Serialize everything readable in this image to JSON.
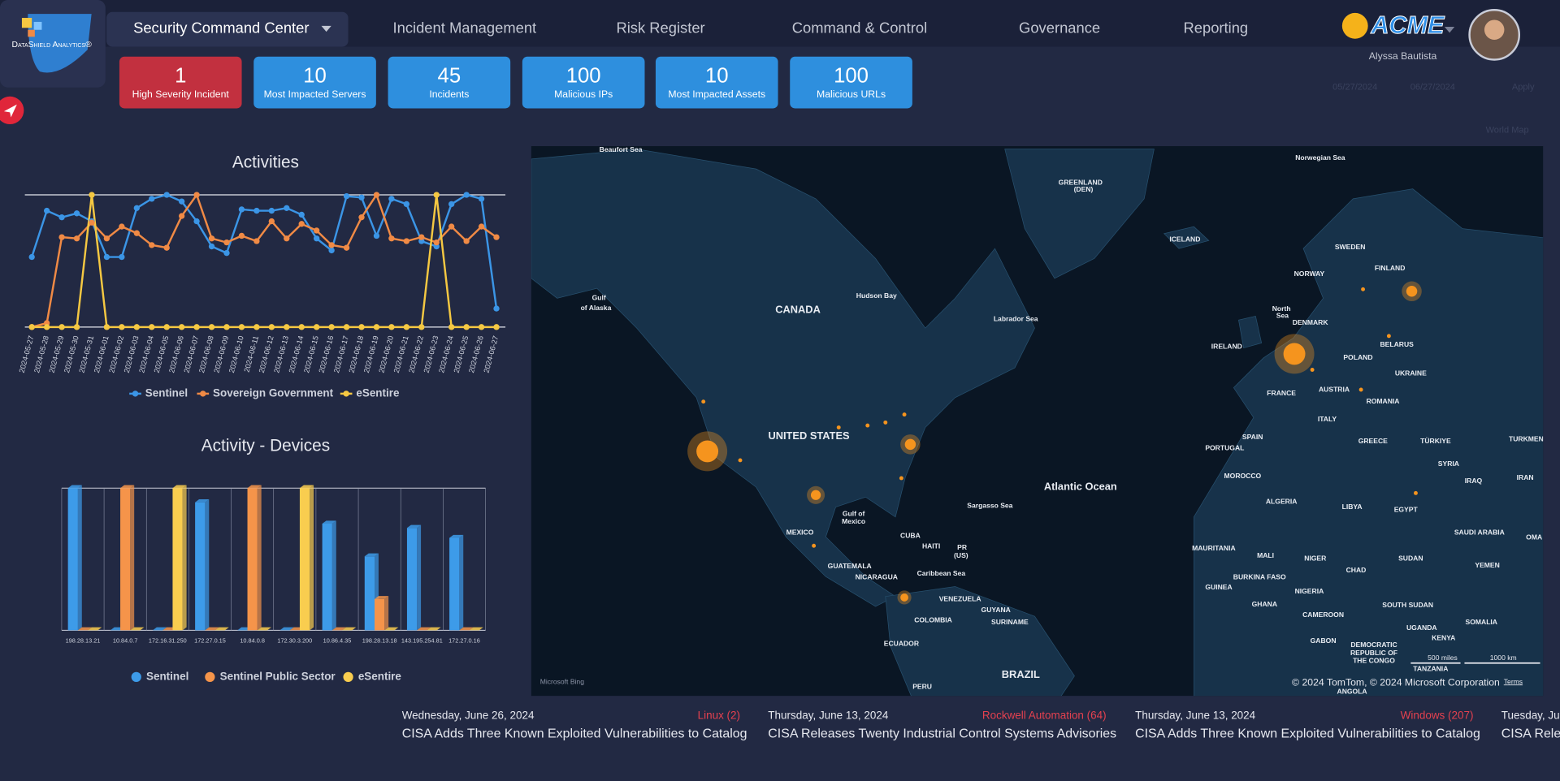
{
  "header": {
    "brand": "DataShield Analytics®",
    "tabs": [
      "Security Command Center",
      "Incident Management",
      "Risk Register",
      "Command & Control",
      "Governance",
      "Reporting"
    ],
    "company": "ACME",
    "user": "Alyssa Bautista"
  },
  "filters": {
    "start_date": "05/27/2024",
    "end_date": "06/27/2024",
    "apply": "Apply",
    "map_view": "World Map"
  },
  "kpis": [
    {
      "value": 1,
      "label": "High Severity Incident",
      "color": "#c2303f"
    },
    {
      "value": 10,
      "label": "Most Impacted Servers",
      "color": "#2e8fde"
    },
    {
      "value": 45,
      "label": "Incidents",
      "color": "#2e8fde"
    },
    {
      "value": 100,
      "label": "Malicious IPs",
      "color": "#2e8fde"
    },
    {
      "value": 10,
      "label": "Most Impacted Assets",
      "color": "#2e8fde"
    },
    {
      "value": 100,
      "label": "Malicious URLs",
      "color": "#2e8fde"
    }
  ],
  "chart_data": [
    {
      "type": "line",
      "title": "Activities",
      "legend": "bottom",
      "ylim": [
        0,
        100
      ],
      "categories": [
        "2024-05-27",
        "2024-05-28",
        "2024-05-29",
        "2024-05-30",
        "2024-05-31",
        "2024-06-01",
        "2024-06-02",
        "2024-06-03",
        "2024-06-04",
        "2024-06-05",
        "2024-06-06",
        "2024-06-07",
        "2024-06-08",
        "2024-06-09",
        "2024-06-10",
        "2024-06-11",
        "2024-06-12",
        "2024-06-13",
        "2024-06-14",
        "2024-06-15",
        "2024-06-16",
        "2024-06-17",
        "2024-06-18",
        "2024-06-19",
        "2024-06-20",
        "2024-06-21",
        "2024-06-22",
        "2024-06-23",
        "2024-06-24",
        "2024-06-25",
        "2024-06-26",
        "2024-06-27"
      ],
      "series": [
        {
          "name": "Sentinel",
          "color": "#3b95e6",
          "values": [
            53,
            88,
            83,
            86,
            80,
            53,
            53,
            90,
            97,
            100,
            95,
            80,
            61,
            56,
            89,
            88,
            88,
            90,
            85,
            67,
            58,
            99,
            98,
            69,
            97,
            93,
            65,
            61,
            93,
            100,
            97,
            14
          ]
        },
        {
          "name": "Sovereign Government",
          "color": "#f08a45",
          "values": [
            0,
            3,
            68,
            67,
            79,
            67,
            76,
            71,
            62,
            60,
            84,
            100,
            67,
            64,
            69,
            65,
            80,
            67,
            78,
            73,
            62,
            60,
            83,
            100,
            67,
            65,
            68,
            64,
            76,
            65,
            76,
            68
          ]
        },
        {
          "name": "eSentire",
          "color": "#f5c842",
          "values": [
            0,
            0,
            0,
            0,
            100,
            0,
            0,
            0,
            0,
            0,
            0,
            0,
            0,
            0,
            0,
            0,
            0,
            0,
            0,
            0,
            0,
            0,
            0,
            0,
            0,
            0,
            0,
            100,
            0,
            0,
            0,
            0
          ]
        }
      ]
    },
    {
      "type": "bar",
      "title": "Activity - Devices",
      "legend": "bottom",
      "ylim": [
        0,
        100
      ],
      "categories": [
        "198.28.13.21",
        "10.84.0.7",
        "172.16.31.250",
        "172.27.0.15",
        "10.84.0.8",
        "172.30.3.200",
        "10.86.4.35",
        "198.28.13.18",
        "143.195.254.81",
        "172.27.0.16"
      ],
      "series": [
        {
          "name": "Sentinel",
          "color": "#3d9be9",
          "values": [
            100,
            0,
            0,
            90,
            0,
            0,
            75,
            52,
            72,
            65
          ]
        },
        {
          "name": "Sentinel Public Sector",
          "color": "#f5944a",
          "values": [
            0,
            100,
            0,
            0,
            100,
            0,
            0,
            22,
            0,
            0
          ]
        },
        {
          "name": "eSentire",
          "color": "#f9cd4f",
          "values": [
            0,
            0,
            100,
            0,
            0,
            100,
            0,
            0,
            0,
            0
          ]
        }
      ]
    }
  ],
  "map": {
    "labels": [
      "Beaufort Sea",
      "Norwegian Sea",
      "GREENLAND",
      "(DEN)",
      "ICELAND",
      "SWEDEN",
      "FINLAND",
      "NORWAY",
      "Gulf",
      "of Alaska",
      "Hudson Bay",
      "CANADA",
      "Labrador Sea",
      "North",
      "Sea",
      "DENMARK",
      "IRELAND",
      "BELARUS",
      "POLAND",
      "UKRAINE",
      "AUSTRIA",
      "FRANCE",
      "ROMANIA",
      "ITALY",
      "UNITED STATES",
      "SPAIN",
      "GREECE",
      "TÜRKIYE",
      "TURKMENI",
      "PORTUGAL",
      "SYRIA",
      "MOROCCO",
      "IRAQ",
      "IRAN",
      "Atlantic Ocean",
      "ALGERIA",
      "LIBYA",
      "EGYPT",
      "Sargasso Sea",
      "Gulf of",
      "Mexico",
      "MEXICO",
      "SAUDI ARABIA",
      "OMA",
      "CUBA",
      "HAITI",
      "PR",
      "(US)",
      "MAURITANIA",
      "MALI",
      "NIGER",
      "SUDAN",
      "GUATEMALA",
      "YEMEN",
      "CHAD",
      "Caribbean Sea",
      "BURKINA FASO",
      "NICARAGUA",
      "GUINEA",
      "NIGERIA",
      "VENEZUELA",
      "GHANA",
      "SOUTH SUDAN",
      "GUYANA",
      "CAMEROON",
      "COLOMBIA",
      "SURINAME",
      "SOMALIA",
      "UGANDA",
      "KENYA",
      "GABON",
      "ECUADOR",
      "DEMOCRATIC",
      "REPUBLIC OF",
      "THE CONGO",
      "TANZANIA",
      "BRAZIL",
      "PERU",
      "ANGOLA"
    ],
    "attribution": "Microsoft Bing",
    "copyright": "© 2024 TomTom, © 2024 Microsoft Corporation",
    "terms": "Terms",
    "scale_miles": "500 miles",
    "scale_km": "1000 km"
  },
  "news": [
    {
      "date": "Wednesday, June 26, 2024",
      "source": "Linux (2)",
      "title": "CISA Adds Three Known Exploited Vulnerabilities to Catalog"
    },
    {
      "date": "Thursday, June 13, 2024",
      "source": "Rockwell Automation (64)",
      "title": "CISA Releases Twenty Industrial Control Systems Advisories"
    },
    {
      "date": "Thursday, June 13, 2024",
      "source": "Windows (207)",
      "title": "CISA Adds Three Known Exploited Vulnerabilities to Catalog"
    },
    {
      "date": "Tuesday, Jun",
      "source": "",
      "title": "CISA Relea"
    }
  ]
}
